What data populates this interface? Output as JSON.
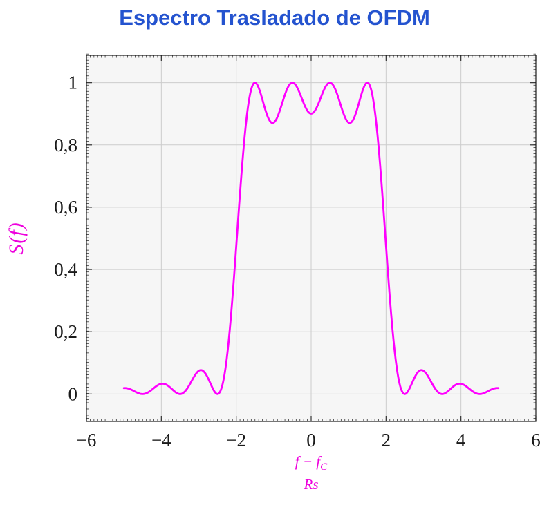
{
  "title": {
    "text": "Espectro Trasladado de OFDM"
  },
  "ylabel": {
    "text": "S(f)"
  },
  "xlabel": {
    "num_main": "f − f",
    "num_sub": "C",
    "den": "Rs",
    "plain": "(f − f_C)/Rs"
  },
  "chart_data": {
    "type": "line",
    "title": "Espectro Trasladado de OFDM",
    "xlabel": "(f − f_C)/Rs",
    "ylabel": "S(f)",
    "xlim": [
      -6,
      6
    ],
    "ylim": [
      -0.088,
      1.088
    ],
    "grid": true,
    "legend": false,
    "xticks": {
      "values": [
        -6,
        -4,
        -2,
        0,
        2,
        4,
        6
      ],
      "labels": [
        "−6",
        "−4",
        "−2",
        "0",
        "2",
        "4",
        "6"
      ]
    },
    "yticks": {
      "values": [
        0,
        0.2,
        0.4,
        0.6,
        0.8,
        1
      ],
      "labels": [
        "0",
        "0,2",
        "0,4",
        "0,6",
        "0,8",
        "1"
      ]
    },
    "minor_ticks": {
      "x_step": 0.1,
      "y_step": 0.01
    },
    "series": [
      {
        "name": "S(f)",
        "color": "#ff00ff",
        "model": "sum_of_sinc_squared",
        "subcarrier_offsets": [
          -1.5,
          -0.5,
          0.5,
          1.5
        ],
        "x_min": -5,
        "x_max": 5,
        "samples": 800,
        "key_points": [
          [
            -5,
            0.019
          ],
          [
            -4.5,
            0
          ],
          [
            -4,
            0.033
          ],
          [
            -3.5,
            0
          ],
          [
            -3,
            0.075
          ],
          [
            -2.5,
            0
          ],
          [
            -2,
            0.475
          ],
          [
            -1.5,
            1
          ],
          [
            -1,
            0.871
          ],
          [
            -0.5,
            1
          ],
          [
            0,
            0.901
          ],
          [
            0.5,
            1
          ],
          [
            1,
            0.871
          ],
          [
            1.5,
            1
          ],
          [
            2,
            0.475
          ],
          [
            2.5,
            0
          ],
          [
            3,
            0.075
          ],
          [
            3.5,
            0
          ],
          [
            4,
            0.033
          ],
          [
            4.5,
            0
          ],
          [
            5,
            0.019
          ]
        ]
      }
    ],
    "colors": {
      "title": "#2453cf",
      "curve": "#ff00ff",
      "axis_label": "#ee00dd",
      "tick_labels": "#1a1a1a",
      "grid": "#cccccc",
      "frame": "#1a1a1a",
      "plot_bg": "#f6f6f6",
      "tick": "#333333"
    }
  }
}
